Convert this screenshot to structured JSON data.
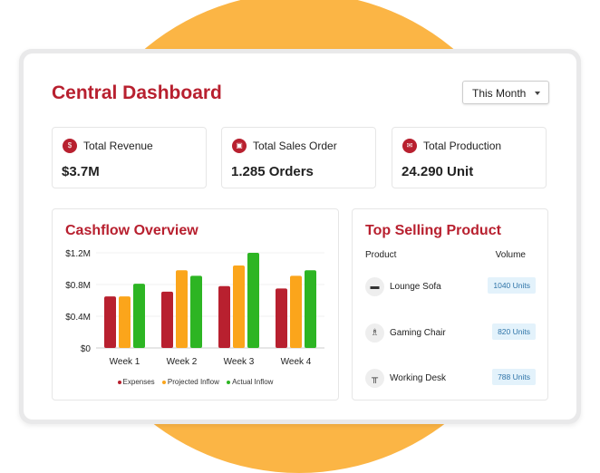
{
  "header": {
    "title": "Central Dashboard",
    "period_selector": "This Month"
  },
  "stats": [
    {
      "label": "Total Revenue",
      "value": "$3.7M",
      "icon": "dollar-icon"
    },
    {
      "label": "Total Sales Order",
      "value": "1.285 Orders",
      "icon": "order-icon"
    },
    {
      "label": "Total Production",
      "value": "24.290 Unit",
      "icon": "production-icon"
    }
  ],
  "colors": {
    "accent": "#b8202f",
    "expenses": "#b8202f",
    "projected": "#fba51b",
    "actual": "#2db523",
    "background_circle": "#fbb545"
  },
  "chart_data": {
    "type": "bar",
    "title": "Cashflow Overview",
    "categories": [
      "Week 1",
      "Week 2",
      "Week 3",
      "Week 4"
    ],
    "series": [
      {
        "name": "Expenses",
        "values": [
          0.65,
          0.71,
          0.78,
          0.75
        ]
      },
      {
        "name": "Projected Inflow",
        "values": [
          0.65,
          0.98,
          1.04,
          0.91
        ]
      },
      {
        "name": "Actual Inflow",
        "values": [
          0.81,
          0.91,
          1.2,
          0.98
        ]
      }
    ],
    "yunit": "$M",
    "ylim": [
      0,
      1.2
    ],
    "yticks": [
      "$0",
      "$0.4M",
      "$0.8M",
      "$1.2M"
    ],
    "legend": "bottom",
    "grid": true
  },
  "top_products": {
    "title": "Top Selling Product",
    "col_product": "Product",
    "col_volume": "Volume",
    "items": [
      {
        "name": "Lounge Sofa",
        "volume": "1040 Units",
        "icon": "sofa-icon"
      },
      {
        "name": "Gaming Chair",
        "volume": "820 Units",
        "icon": "chair-icon"
      },
      {
        "name": "Working Desk",
        "volume": "788 Units",
        "icon": "desk-icon"
      }
    ]
  }
}
